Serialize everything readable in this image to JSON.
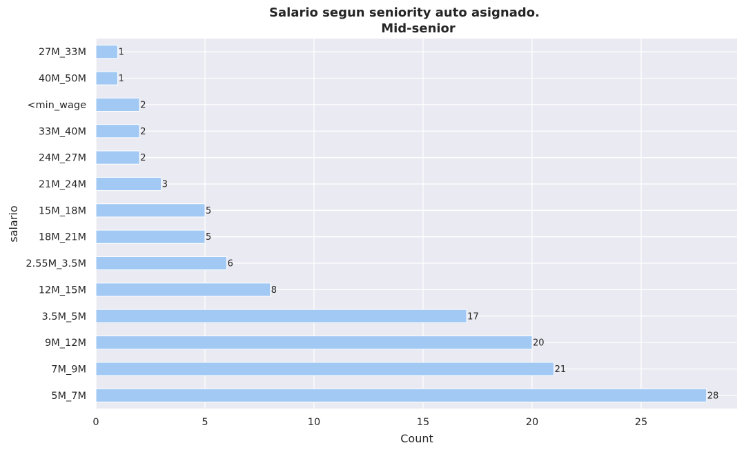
{
  "chart_data": {
    "type": "bar",
    "orientation": "horizontal",
    "title": "Salario segun seniority auto asignado.",
    "subtitle": "Mid-senior",
    "xlabel": "Count",
    "ylabel": "salario",
    "categories": [
      "27M_33M",
      "40M_50M",
      "<min_wage",
      "33M_40M",
      "24M_27M",
      "21M_24M",
      "15M_18M",
      "18M_21M",
      "2.55M_3.5M",
      "12M_15M",
      "3.5M_5M",
      "9M_12M",
      "7M_9M",
      "5M_7M"
    ],
    "values": [
      1,
      1,
      2,
      2,
      2,
      3,
      5,
      5,
      6,
      8,
      17,
      20,
      21,
      28
    ],
    "xlim": [
      0,
      29.4
    ],
    "xticks": [
      0,
      5,
      10,
      15,
      20,
      25
    ],
    "grid": true,
    "bar_color": "#a1c9f4",
    "background_color": "#eaeaf2",
    "grid_color": "#ffffff"
  }
}
